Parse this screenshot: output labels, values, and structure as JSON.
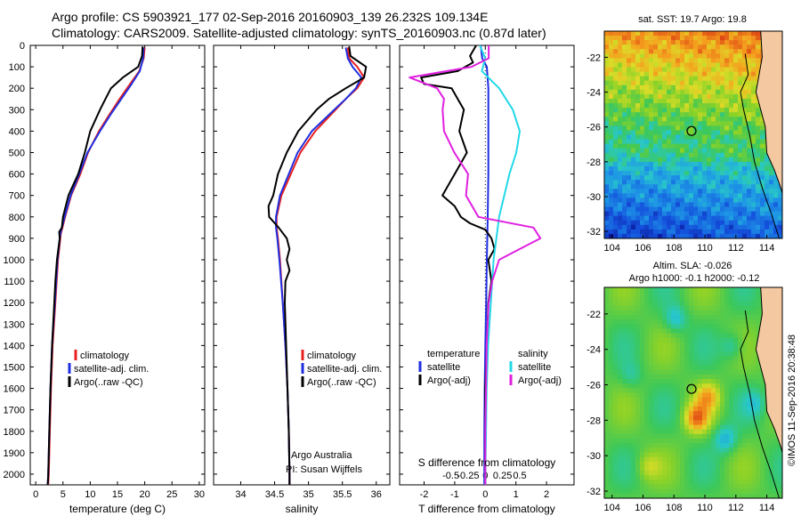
{
  "header": {
    "line1": "Argo profile: CS 5903921_177 02-Sep-2016 20160903_139 26.232S 109.134E",
    "line2": "Climatology: CARS2009. Satellite-adjusted climatology: synTS_20160903.nc (0.87d later)"
  },
  "colors": {
    "climatology": "#e82020",
    "satellite": "#1f2fe0",
    "argo": "#000000",
    "sat_salinity": "#22d8e8",
    "argo_salinity": "#e020e0"
  },
  "depth_axis": {
    "range": [
      0,
      2050
    ],
    "ticks": [
      0,
      100,
      200,
      300,
      400,
      500,
      600,
      700,
      800,
      900,
      1000,
      1100,
      1200,
      1300,
      1400,
      1500,
      1600,
      1700,
      1800,
      1900,
      2000
    ]
  },
  "chart_data": [
    {
      "id": "temperature",
      "type": "line",
      "xlabel": "temperature (deg C)",
      "xlim": [
        -1,
        31
      ],
      "xticks": [
        0,
        5,
        10,
        15,
        20,
        25,
        30
      ],
      "legend": [
        "climatology",
        "satellite-adj. clim.",
        "Argo(..raw -QC)"
      ],
      "series": [
        {
          "name": "climatology",
          "color_key": "climatology",
          "depth": [
            10,
            60,
            120,
            180,
            250,
            320,
            400,
            500,
            600,
            700,
            800,
            880,
            1000,
            1200,
            1400,
            1600,
            1800,
            2000,
            2050
          ],
          "values": [
            20.0,
            19.8,
            19.0,
            17.3,
            15.4,
            13.6,
            11.6,
            9.6,
            8.2,
            6.5,
            5.4,
            4.6,
            4.1,
            3.6,
            3.1,
            2.8,
            2.6,
            2.4,
            2.3
          ]
        },
        {
          "name": "satellite-adj. clim.",
          "color_key": "satellite",
          "depth": [
            10,
            60,
            120,
            180,
            250,
            320,
            400,
            500,
            600,
            700,
            800,
            880,
            1000,
            1200,
            1400,
            1600,
            1800,
            2000,
            2050
          ],
          "values": [
            19.8,
            19.7,
            19.1,
            17.6,
            15.7,
            13.8,
            11.8,
            9.5,
            8.0,
            6.4,
            5.3,
            4.5,
            4.0,
            3.5,
            3.0,
            2.7,
            2.5,
            2.3,
            2.2
          ]
        },
        {
          "name": "Argo(..raw -QC)",
          "color_key": "argo",
          "depth": [
            5,
            50,
            100,
            150,
            200,
            250,
            300,
            400,
            500,
            600,
            650,
            700,
            800,
            850,
            870,
            900,
            1000,
            1100,
            1200,
            1400,
            1600,
            1800,
            2000,
            2050
          ],
          "values": [
            19.6,
            19.5,
            18.8,
            16.0,
            13.8,
            12.8,
            11.8,
            10.0,
            9.0,
            7.8,
            6.9,
            6.0,
            5.0,
            4.8,
            4.3,
            4.4,
            3.9,
            3.6,
            3.4,
            3.0,
            2.7,
            2.5,
            2.3,
            2.2
          ]
        }
      ]
    },
    {
      "id": "salinity",
      "type": "line",
      "xlabel": "salinity",
      "xlim": [
        33.6,
        36.2
      ],
      "xticks": [
        34,
        34.5,
        35,
        35.5,
        36
      ],
      "xtick_labels": [
        "34",
        "34.5",
        "35",
        "35.5",
        "36"
      ],
      "legend": [
        "climatology",
        "satellite-adj. clim.",
        "Argo(..raw -QC)"
      ],
      "footnote": [
        "Argo Australia",
        "PI: Susan Wijffels"
      ],
      "series": [
        {
          "name": "climatology",
          "color_key": "climatology",
          "depth": [
            10,
            60,
            100,
            150,
            200,
            250,
            300,
            400,
            500,
            600,
            700,
            800,
            850,
            900,
            1000,
            1200,
            1400,
            1600,
            1800,
            2000,
            2050
          ],
          "values": [
            35.58,
            35.6,
            35.72,
            35.82,
            35.72,
            35.55,
            35.4,
            35.1,
            34.88,
            34.74,
            34.6,
            34.53,
            34.53,
            34.55,
            34.58,
            34.62,
            34.66,
            34.69,
            34.71,
            34.72,
            34.72
          ]
        },
        {
          "name": "satellite-adj. clim.",
          "color_key": "satellite",
          "depth": [
            10,
            60,
            100,
            150,
            200,
            250,
            300,
            400,
            500,
            600,
            700,
            800,
            850,
            900,
            1000,
            1200,
            1400,
            1600,
            1800,
            2000,
            2050
          ],
          "values": [
            35.55,
            35.58,
            35.65,
            35.78,
            35.7,
            35.55,
            35.38,
            35.05,
            34.84,
            34.71,
            34.58,
            34.52,
            34.52,
            34.54,
            34.57,
            34.62,
            34.66,
            34.69,
            34.71,
            34.72,
            34.72
          ]
        },
        {
          "name": "Argo(..raw -QC)",
          "color_key": "argo",
          "depth": [
            5,
            50,
            100,
            150,
            200,
            250,
            300,
            400,
            500,
            600,
            700,
            750,
            800,
            850,
            900,
            950,
            1000,
            1050,
            1100,
            1200,
            1400,
            1600,
            1800,
            2000,
            2050
          ],
          "values": [
            35.6,
            35.62,
            35.85,
            35.82,
            35.55,
            35.3,
            35.12,
            34.85,
            34.68,
            34.55,
            34.48,
            34.41,
            34.42,
            34.56,
            34.68,
            34.72,
            34.68,
            34.72,
            34.66,
            34.65,
            34.67,
            34.69,
            34.71,
            34.72,
            34.72
          ]
        }
      ]
    },
    {
      "id": "difference",
      "type": "line",
      "xlabel": "T difference from climatology",
      "xlabel_top": "S difference from climatology",
      "xlim": [
        -2.8,
        2.9
      ],
      "xticks": [
        -2,
        -1,
        0,
        1,
        2
      ],
      "xtick_labels": [
        "-2",
        "-1",
        "0",
        "1",
        "2"
      ],
      "sticks": [
        -0.5,
        -0.25,
        0,
        0.25,
        0.5
      ],
      "stick_labels": [
        "-0.5",
        "-0.25",
        "0",
        "0.25",
        "0.5"
      ],
      "legend_headers": [
        "temperature",
        "salinity"
      ],
      "legend": [
        "satellite",
        "Argo(-adj)",
        "satellite",
        "Argo(-adj)"
      ],
      "series": [
        {
          "name": "satellite",
          "quantity": "temperature",
          "color_key": "satellite",
          "depth": [
            0,
            60,
            100,
            200,
            300,
            400,
            600,
            800,
            1000,
            1200,
            1400,
            1600,
            1800,
            2000,
            2050
          ],
          "values": [
            -0.15,
            -0.1,
            0.05,
            0.1,
            0.1,
            0.1,
            0.1,
            0.08,
            0.05,
            0.03,
            0.0,
            -0.02,
            -0.03,
            -0.03,
            -0.03
          ]
        },
        {
          "name": "Argo(-adj)",
          "quantity": "temperature",
          "color_key": "argo",
          "depth": [
            0,
            50,
            80,
            120,
            150,
            180,
            200,
            250,
            300,
            400,
            500,
            600,
            700,
            750,
            800,
            830,
            860,
            900,
            950,
            1000,
            1100,
            1200,
            1400,
            1600,
            1800,
            2000,
            2050
          ],
          "values": [
            -0.3,
            -0.5,
            -0.4,
            -0.9,
            -2.1,
            -2.0,
            -1.1,
            -0.9,
            -0.7,
            -0.85,
            -0.6,
            -1.0,
            -1.4,
            -1.0,
            -0.8,
            -0.5,
            0.0,
            0.2,
            0.3,
            0.1,
            0.2,
            0.1,
            0.05,
            0.0,
            0.0,
            0.0,
            0.0
          ]
        },
        {
          "name": "satellite",
          "quantity": "salinity",
          "color_key": "sat_salinity",
          "depth": [
            0,
            60,
            120,
            200,
            300,
            400,
            500,
            600,
            800,
            1000,
            1200,
            1400,
            1600,
            1800,
            2000,
            2050
          ],
          "values": [
            -0.08,
            0.0,
            -0.05,
            0.2,
            0.4,
            0.5,
            0.45,
            0.35,
            0.2,
            0.12,
            0.08,
            0.04,
            0.02,
            0.01,
            0.0,
            0.0
          ]
        },
        {
          "name": "Argo(-adj)",
          "quantity": "salinity",
          "color_key": "argo_salinity",
          "depth": [
            0,
            60,
            100,
            150,
            200,
            250,
            300,
            400,
            500,
            600,
            700,
            800,
            850,
            900,
            950,
            1000,
            1100,
            1200,
            1400,
            1600,
            1800,
            2000,
            2050
          ],
          "values": [
            0.05,
            0.05,
            -0.2,
            -1.1,
            -0.7,
            -0.6,
            -0.62,
            -0.6,
            -0.45,
            -0.25,
            -0.28,
            -0.1,
            0.7,
            0.8,
            0.5,
            0.2,
            0.1,
            0.05,
            0.02,
            0.01,
            0.0,
            0.0,
            0.0
          ]
        }
      ]
    },
    {
      "id": "sst_map",
      "type": "heatmap",
      "title": "sat. SST: 19.7 Argo: 19.8",
      "xlim": [
        103.5,
        115
      ],
      "ylim": [
        -32.4,
        -20.5
      ],
      "xticks": [
        104,
        106,
        108,
        110,
        112,
        114
      ],
      "yticks": [
        -32,
        -30,
        -28,
        -26,
        -24,
        -22
      ],
      "profile_lon": 109.134,
      "profile_lat": -26.232
    },
    {
      "id": "sla_map",
      "type": "heatmap",
      "title": "Altim. SLA: -0.026",
      "subtitle": "Argo h1000: -0.1 h2000: -0.12",
      "xlim": [
        103.5,
        115
      ],
      "ylim": [
        -32.4,
        -20.5
      ],
      "xticks": [
        104,
        106,
        108,
        110,
        112,
        114
      ],
      "yticks": [
        -32,
        -30,
        -28,
        -26,
        -24,
        -22
      ],
      "profile_lon": 109.134,
      "profile_lat": -26.232,
      "side_label": "©IMOS 11-Sep-2016 20:38:48"
    }
  ]
}
